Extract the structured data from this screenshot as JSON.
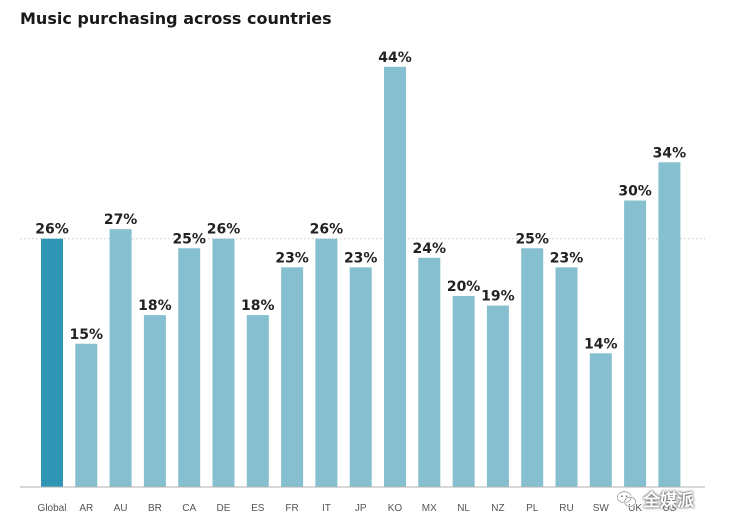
{
  "title": "Music purchasing across countries",
  "colors": {
    "highlight": "#2f97b5",
    "bar": "#86bfd0",
    "reference_line": "#c8c8c8",
    "axis": "#b0b0b0"
  },
  "watermark": {
    "text": "全媒派",
    "icon": "wechat-logo-icon"
  },
  "chart_data": {
    "type": "bar",
    "title": "Music purchasing across countries",
    "categories": [
      "Global",
      "AR",
      "AU",
      "BR",
      "CA",
      "DE",
      "ES",
      "FR",
      "IT",
      "JP",
      "KO",
      "MX",
      "NL",
      "NZ",
      "PL",
      "RU",
      "SW",
      "UK",
      "US"
    ],
    "values": [
      26,
      15,
      27,
      18,
      25,
      26,
      18,
      23,
      26,
      23,
      44,
      24,
      20,
      19,
      25,
      23,
      14,
      30,
      34
    ],
    "labels": [
      "26%",
      "15%",
      "27%",
      "18%",
      "25%",
      "26%",
      "18%",
      "23%",
      "26%",
      "23%",
      "44%",
      "24%",
      "20%",
      "19%",
      "25%",
      "23%",
      "14%",
      "30%",
      "34%"
    ],
    "highlight_category": "Global",
    "reference_line": 26,
    "ylim": [
      0,
      44
    ],
    "grid": false,
    "xlabel": "",
    "ylabel": ""
  }
}
